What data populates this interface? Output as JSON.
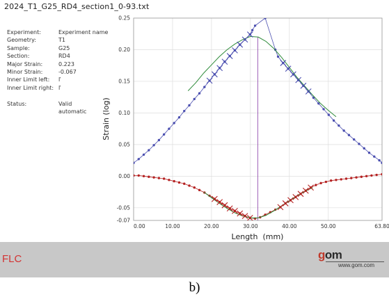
{
  "file_title": "2024_T1_G25_RD4_section1_0-93.txt",
  "info": [
    {
      "key": "Experiment:",
      "value": "Experiment name"
    },
    {
      "key": "Geometry:",
      "value": "T1"
    },
    {
      "key": "Sample:",
      "value": "G25"
    },
    {
      "key": "Section:",
      "value": "RD4"
    },
    {
      "key": "Major Strain:",
      "value": "0.223"
    },
    {
      "key": "Minor Strain:",
      "value": "-0.067"
    },
    {
      "key": "Inner Limit left:",
      "value": "ľ"
    },
    {
      "key": "Inner Limit right:",
      "value": "ľ"
    }
  ],
  "status": {
    "key": "Status:",
    "line1": "Valid",
    "line2": "automatic"
  },
  "footer": {
    "left_label": "FLC",
    "brand_g": "g",
    "brand_rest": "om",
    "url": "www.gom.com"
  },
  "caption": "b)",
  "colors": {
    "major": "#4b4fb0",
    "minor": "#b52222",
    "fit": "#2e8b3a",
    "cursor": "#8a3ea8",
    "grid": "#dddddd"
  },
  "chart_data": {
    "type": "line",
    "xlabel": "Length  (mm)",
    "ylabel": "Strain (log)",
    "xlim": [
      0,
      63.8
    ],
    "ylim": [
      -0.07,
      0.25
    ],
    "x_ticks": [
      0,
      10,
      20,
      30,
      40,
      50,
      63.8
    ],
    "x_tick_labels": [
      "0.00",
      "10.00",
      "20.00",
      "30.00",
      "40.00",
      "50.00",
      "63.80"
    ],
    "y_ticks": [
      0.25,
      0.2,
      0.15,
      0.1,
      0.05,
      0.0,
      -0.05,
      -0.07
    ],
    "y_tick_labels": [
      "0.25",
      "0.20",
      "0.15",
      "0.10",
      "0.05",
      "0.00",
      "-0.05",
      "-0.07"
    ],
    "grid": true,
    "cursor_x": 31.9,
    "series": [
      {
        "role": "major",
        "x": [
          0,
          1.3,
          2.6,
          3.9,
          5.2,
          6.5,
          7.8,
          9.1,
          10.4,
          11.7,
          13,
          14.3,
          15.6,
          16.9,
          18.2,
          19.5,
          20.8,
          22.1,
          23.4,
          24.7,
          26,
          27.3,
          28.6,
          29.9,
          30.5,
          31.2,
          33.8,
          36.4,
          37.1,
          38.4,
          39.7,
          41,
          42.3,
          43.6,
          44.9,
          46.2,
          47.5,
          48.8,
          50.1,
          51.4,
          52.7,
          54,
          55.3,
          56.6,
          57.9,
          59.2,
          60.5,
          61.8,
          63.1,
          63.8
        ],
        "y": [
          0.021,
          0.027,
          0.034,
          0.041,
          0.049,
          0.057,
          0.066,
          0.075,
          0.084,
          0.093,
          0.103,
          0.112,
          0.122,
          0.131,
          0.141,
          0.151,
          0.161,
          0.171,
          0.181,
          0.19,
          0.199,
          0.208,
          0.216,
          0.224,
          0.231,
          0.238,
          0.25,
          0.2,
          0.189,
          0.179,
          0.17,
          0.161,
          0.152,
          0.143,
          0.134,
          0.124,
          0.115,
          0.106,
          0.097,
          0.088,
          0.08,
          0.072,
          0.065,
          0.058,
          0.051,
          0.044,
          0.037,
          0.031,
          0.025,
          0.021
        ]
      },
      {
        "role": "major-crosses",
        "x": [
          19.5,
          20.8,
          22.1,
          23.4,
          24.7,
          26,
          27.3,
          28.6,
          29.9,
          38.4,
          39.7,
          41,
          42.3,
          43.6,
          44.9
        ],
        "y": [
          0.151,
          0.161,
          0.171,
          0.181,
          0.19,
          0.199,
          0.208,
          0.216,
          0.224,
          0.179,
          0.17,
          0.161,
          0.152,
          0.143,
          0.134
        ]
      },
      {
        "role": "major-fit",
        "x": [
          14,
          16,
          18,
          20,
          22,
          24,
          26,
          28,
          30,
          32,
          34,
          36,
          38,
          40,
          42,
          44,
          46,
          48,
          50,
          52
        ],
        "y": [
          0.135,
          0.148,
          0.163,
          0.176,
          0.189,
          0.2,
          0.209,
          0.216,
          0.221,
          0.22,
          0.213,
          0.202,
          0.188,
          0.172,
          0.156,
          0.142,
          0.128,
          0.115,
          0.104,
          0.094
        ]
      },
      {
        "role": "minor",
        "x": [
          0,
          1.3,
          2.6,
          3.9,
          5.2,
          6.5,
          7.8,
          9.1,
          10.4,
          11.7,
          13,
          14.3,
          15.6,
          16.9,
          18.2,
          19.5,
          20.8,
          22.1,
          23.4,
          24.7,
          26,
          27.3,
          28.6,
          29.9,
          31.2,
          32.5,
          33.8,
          35.1,
          36.4,
          37.7,
          39,
          40.3,
          41.6,
          42.9,
          44.2,
          45.5,
          46.8,
          48.1,
          49.4,
          50.7,
          52,
          53.3,
          54.6,
          55.9,
          57.2,
          58.5,
          59.8,
          61.1,
          62.4,
          63.8
        ],
        "y": [
          0.001,
          0.001,
          0,
          -0.001,
          -0.002,
          -0.003,
          -0.004,
          -0.006,
          -0.008,
          -0.01,
          -0.012,
          -0.015,
          -0.018,
          -0.022,
          -0.026,
          -0.031,
          -0.036,
          -0.041,
          -0.046,
          -0.051,
          -0.055,
          -0.059,
          -0.063,
          -0.066,
          -0.067,
          -0.065,
          -0.061,
          -0.057,
          -0.053,
          -0.049,
          -0.043,
          -0.038,
          -0.033,
          -0.028,
          -0.023,
          -0.018,
          -0.014,
          -0.011,
          -0.009,
          -0.007,
          -0.006,
          -0.005,
          -0.004,
          -0.003,
          -0.002,
          -0.001,
          0,
          0.001,
          0.002,
          0.003
        ]
      },
      {
        "role": "minor-crosses",
        "x": [
          20.8,
          22.1,
          23.4,
          24.7,
          26,
          27.3,
          28.6,
          29.9,
          37.7,
          39,
          40.3,
          41.6,
          42.9,
          44.2,
          45.5
        ],
        "y": [
          -0.036,
          -0.041,
          -0.046,
          -0.051,
          -0.055,
          -0.059,
          -0.063,
          -0.066,
          -0.049,
          -0.043,
          -0.038,
          -0.033,
          -0.028,
          -0.023,
          -0.018
        ]
      },
      {
        "role": "minor-fit",
        "x": [
          18,
          20,
          22,
          24,
          26,
          28,
          30,
          32,
          34,
          36,
          38,
          40,
          42,
          44,
          46
        ],
        "y": [
          -0.025,
          -0.034,
          -0.043,
          -0.051,
          -0.058,
          -0.063,
          -0.066,
          -0.066,
          -0.062,
          -0.055,
          -0.047,
          -0.039,
          -0.031,
          -0.024,
          -0.018
        ]
      }
    ]
  }
}
